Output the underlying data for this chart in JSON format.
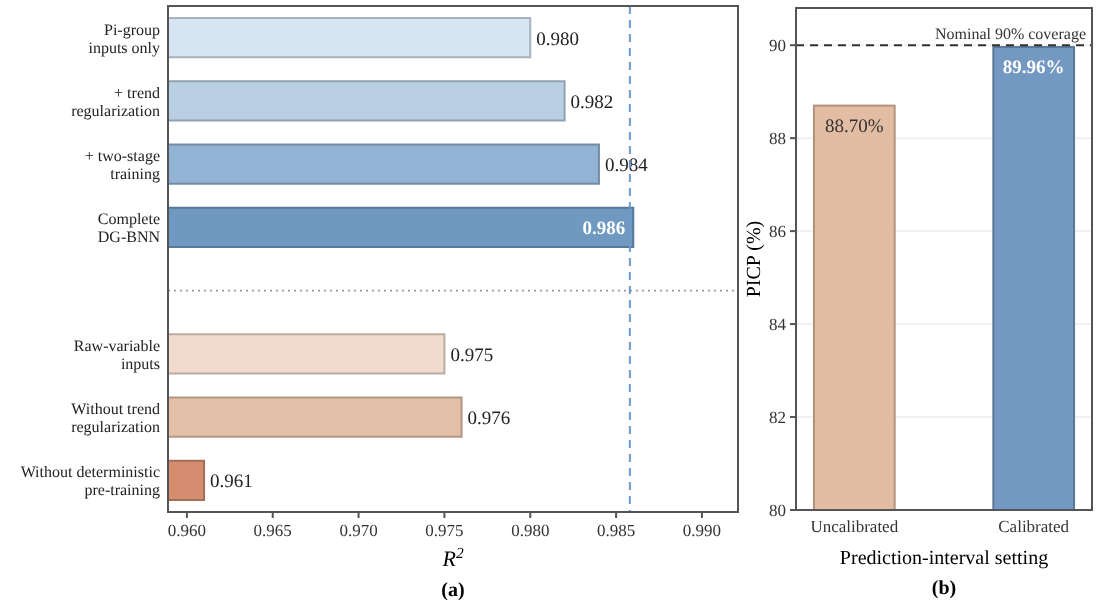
{
  "chart_data": [
    {
      "type": "bar",
      "orientation": "horizontal",
      "categories": [
        "Pi-group\ninputs only",
        "+ trend\nregularization",
        "+ two-stage\ntraining",
        "Complete\nDG-BNN",
        null,
        "Raw-variable\ninputs",
        "Without trend\nregularization",
        "Without deterministic\npre-training"
      ],
      "values": [
        0.98,
        0.982,
        0.984,
        0.986,
        null,
        0.975,
        0.976,
        0.961
      ],
      "colors": [
        "#d7e4f1",
        "#b9cfe4",
        "#93b3d4",
        "#7099c2",
        null,
        "#f1dbcf",
        "#e4c0a8",
        "#d48d6e"
      ],
      "value_labels": [
        "0.980",
        "0.982",
        "0.984",
        "0.986",
        null,
        "0.975",
        "0.976",
        "0.961"
      ],
      "xlim": [
        0.9589,
        0.9921
      ],
      "xticks": [
        {
          "value": 0.96,
          "label": "0.960"
        },
        {
          "value": 0.965,
          "label": "0.965"
        },
        {
          "value": 0.97,
          "label": "0.970"
        },
        {
          "value": 0.975,
          "label": "0.975"
        },
        {
          "value": 0.98,
          "label": "0.980"
        },
        {
          "value": 0.985,
          "label": "0.985"
        },
        {
          "value": 0.99,
          "label": "0.990"
        }
      ],
      "xlabel": "R$^{2}$",
      "ref_lines": [
        {
          "axis": "x",
          "value": 0.9858,
          "label": null,
          "color": "#6a9ad0",
          "line_style": "dashed"
        }
      ],
      "grid": false,
      "annotations": [
        "(a)"
      ]
    },
    {
      "type": "bar",
      "categories": [
        "Uncalibrated",
        "Calibrated"
      ],
      "values": [
        88.7,
        89.96
      ],
      "colors": [
        "#e3bda3",
        "#7399c2"
      ],
      "value_labels": [
        "88.70%",
        "89.96%"
      ],
      "ylim": [
        80,
        90.8
      ],
      "yticks": [
        80,
        82,
        84,
        86,
        88,
        90
      ],
      "xlabel": "Prediction-interval setting",
      "ylabel": "PICP (%)",
      "ref_lines": [
        {
          "axis": "y",
          "value": 90,
          "label": "Nominal 90% coverage",
          "color": "#333333",
          "line_style": "dashed"
        }
      ],
      "grid": "y",
      "annotations": [
        "(b)"
      ]
    }
  ]
}
